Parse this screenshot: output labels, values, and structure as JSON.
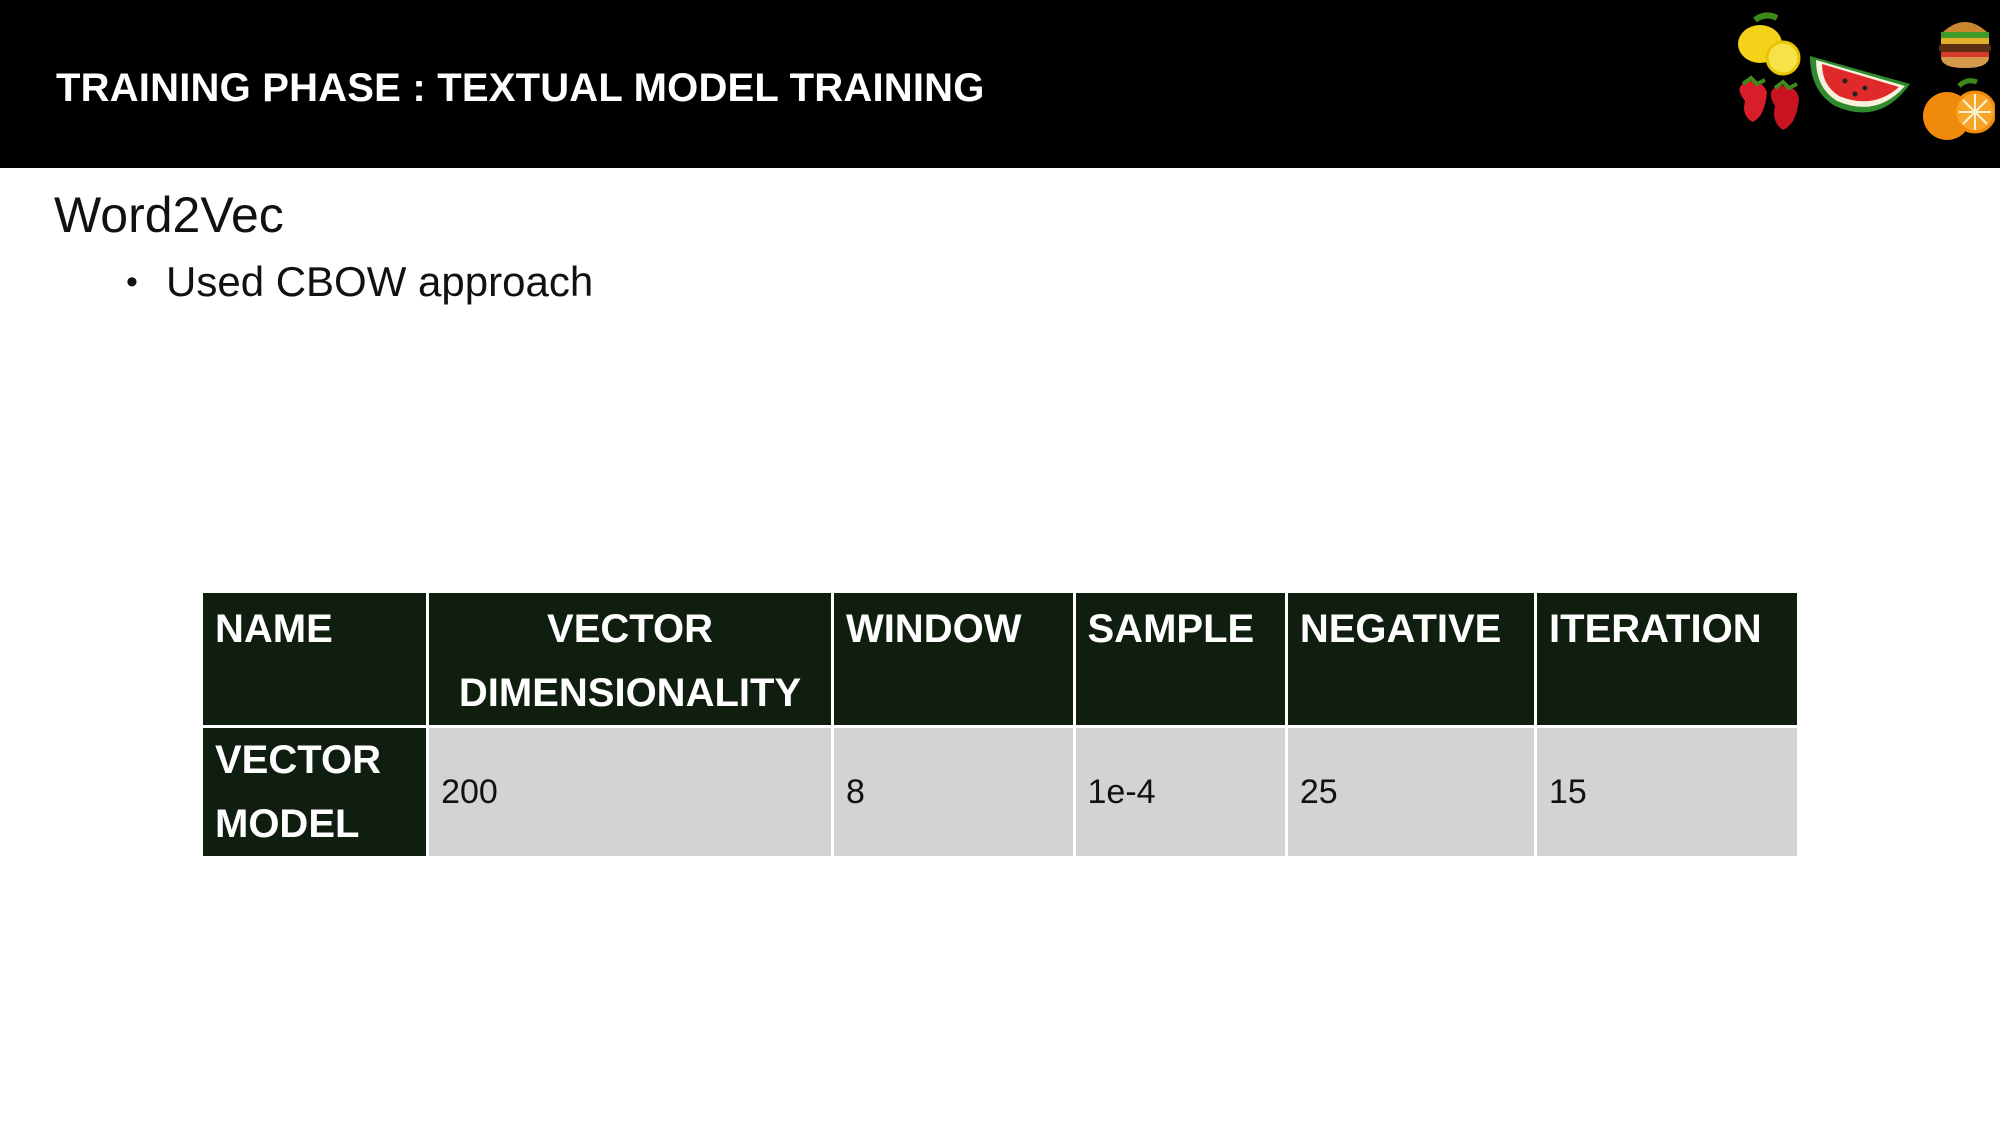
{
  "header": {
    "title": "TRAINING PHASE : TEXTUAL MODEL TRAINING",
    "image_icons": [
      "lemon-icon",
      "watermelon-icon",
      "burger-icon",
      "strawberry-icon",
      "orange-icon"
    ]
  },
  "content": {
    "subtitle": "Word2Vec",
    "bullets": [
      "Used CBOW approach"
    ]
  },
  "table": {
    "headers": [
      "NAME",
      "VECTOR DIMENSIONALITY",
      "WINDOW",
      "SAMPLE",
      "NEGATIVE",
      "ITERATION"
    ],
    "rows": [
      [
        "VECTOR MODEL",
        "200",
        "8",
        "1e-4",
        "25",
        "15"
      ]
    ]
  },
  "colors": {
    "header_bg": "#000000",
    "table_header_bg": "#0f1e0f",
    "table_cell_bg": "#d3d3d3"
  }
}
